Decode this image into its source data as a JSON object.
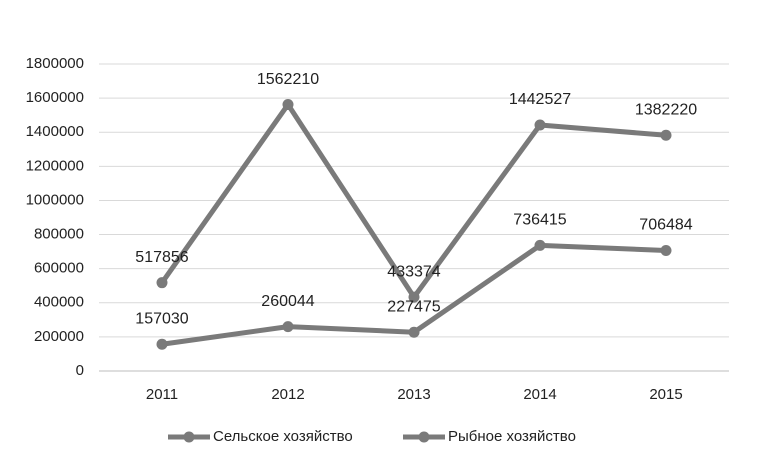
{
  "chart_data": {
    "type": "line",
    "categories": [
      "2011",
      "2012",
      "2013",
      "2014",
      "2015"
    ],
    "series": [
      {
        "name": "Сельское хозяйство",
        "color": "#7a7a7a",
        "values": [
          517856,
          1562210,
          433374,
          1442527,
          1382220
        ]
      },
      {
        "name": "Рыбное хозяйство",
        "color": "#7a7a7a",
        "values": [
          157030,
          260044,
          227475,
          736415,
          706484
        ]
      }
    ],
    "ylim": [
      0,
      1800000
    ],
    "yticks": [
      0,
      200000,
      400000,
      600000,
      800000,
      1000000,
      1200000,
      1400000,
      1600000,
      1800000
    ],
    "grid": true,
    "legend": "bottom"
  }
}
